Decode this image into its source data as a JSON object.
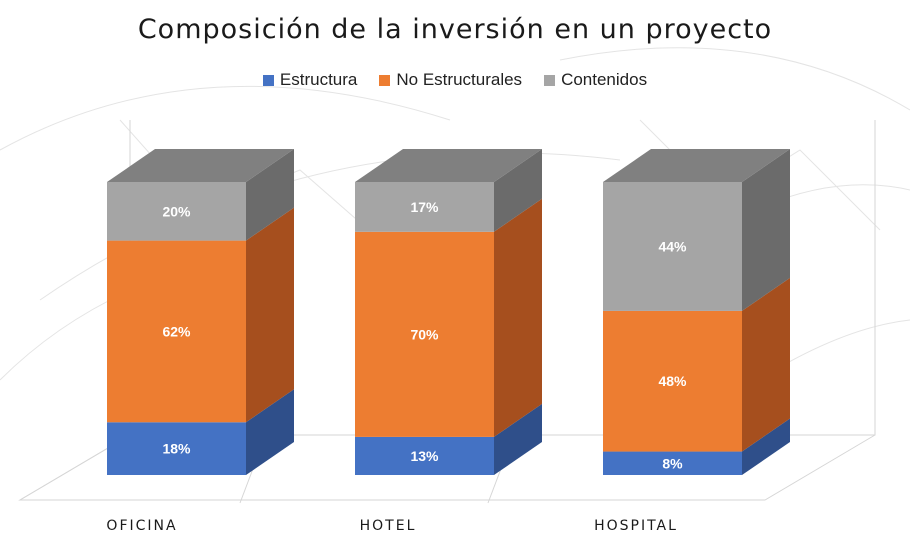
{
  "chart_data": {
    "type": "bar",
    "stacked": true,
    "percent_stacked": true,
    "three_d": true,
    "title": "Composición de la inversión en un proyecto",
    "categories": [
      "OFICINA",
      "HOTEL",
      "HOSPITAL"
    ],
    "series": [
      {
        "name": "Estructura",
        "values": [
          18,
          13,
          8
        ],
        "labels": [
          "18%",
          "13%",
          "8%"
        ]
      },
      {
        "name": "No Estructurales",
        "values": [
          62,
          70,
          48
        ],
        "labels": [
          "62%",
          "70%",
          "48%"
        ]
      },
      {
        "name": "Contenidos",
        "values": [
          20,
          17,
          44
        ],
        "labels": [
          "20%",
          "17%",
          "44%"
        ]
      }
    ],
    "ylim": [
      0,
      100
    ],
    "legend_position": "top",
    "grid": false,
    "colors": {
      "Estructura": {
        "front": "#4472c4",
        "side": "#2f4f8a",
        "top": "#5a84cc"
      },
      "No Estructurales": {
        "front": "#ed7d31",
        "side": "#a64f1e",
        "top": "#f0904f"
      },
      "Contenidos": {
        "front": "#a5a5a5",
        "side": "#6b6b6b",
        "top": "#808080"
      }
    }
  }
}
